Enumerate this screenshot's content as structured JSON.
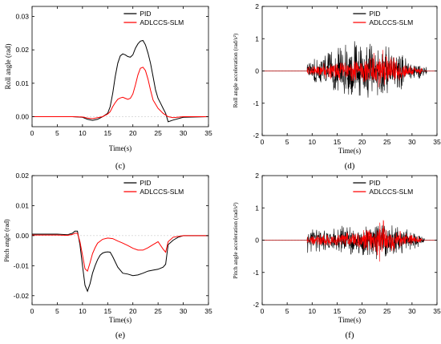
{
  "colors": {
    "pid": "#000000",
    "adlccs": "#ff0000",
    "axis": "#000000",
    "zero": "#bbbbbb"
  },
  "chart_data": [
    {
      "id": "c",
      "type": "line",
      "caption": "(c)",
      "xlabel": "Time(s)",
      "ylabel": "Roll angle  (rad)",
      "xlim": [
        0,
        35
      ],
      "ylim": [
        -0.003,
        0.033
      ],
      "xticks": [
        "0",
        "5",
        "10",
        "15",
        "20",
        "25",
        "30",
        "35"
      ],
      "yticks": [
        "0.00",
        "0.01",
        "0.02",
        "0.03"
      ],
      "legend_position": "top-right",
      "series": [
        {
          "name": "PID",
          "color": "#000000",
          "x": [
            0,
            5,
            8,
            10,
            11,
            12,
            13,
            14,
            15,
            15.5,
            16,
            16.5,
            17,
            17.5,
            18,
            18.5,
            19,
            19.5,
            20,
            20.5,
            21,
            21.5,
            22,
            22.5,
            23,
            23.5,
            24,
            24.5,
            25,
            25.5,
            26,
            26.5,
            27,
            28,
            30,
            35
          ],
          "y": [
            0,
            0,
            0,
            -0.0002,
            -0.0008,
            -0.0011,
            -0.0008,
            0,
            0.001,
            0.003,
            0.007,
            0.012,
            0.016,
            0.0182,
            0.0188,
            0.0185,
            0.018,
            0.0178,
            0.0185,
            0.0205,
            0.0218,
            0.0226,
            0.0228,
            0.0215,
            0.019,
            0.016,
            0.012,
            0.008,
            0.0055,
            0.004,
            0.0025,
            0.001,
            -0.0015,
            -0.001,
            -0.0002,
            0
          ]
        },
        {
          "name": "ADLCCS-SLM",
          "color": "#ff0000",
          "x": [
            0,
            5,
            8,
            10,
            11,
            12,
            13,
            14,
            15,
            15.5,
            16,
            16.5,
            17,
            17.5,
            18,
            18.5,
            19,
            19.5,
            20,
            20.5,
            21,
            21.5,
            22,
            22.5,
            23,
            23.5,
            24,
            25,
            26,
            27,
            28,
            30,
            35
          ],
          "y": [
            0,
            0,
            0,
            -0.0001,
            -0.0004,
            -0.0006,
            -0.0003,
            0,
            0.0008,
            0.0015,
            0.003,
            0.0042,
            0.0052,
            0.0056,
            0.0058,
            0.0055,
            0.0052,
            0.0055,
            0.0068,
            0.0095,
            0.0125,
            0.0145,
            0.0148,
            0.0138,
            0.0112,
            0.008,
            0.005,
            0.0025,
            0.001,
            0,
            -0.0003,
            0,
            0
          ]
        }
      ]
    },
    {
      "id": "d",
      "type": "line",
      "caption": "(d)",
      "xlabel": "Time(s)",
      "ylabel": "Roll angle acceleration  (rad/s²)",
      "xlim": [
        0,
        35
      ],
      "ylim": [
        -2,
        2
      ],
      "xticks": [
        "0",
        "5",
        "10",
        "15",
        "20",
        "25",
        "30",
        "35"
      ],
      "yticks": [
        "-2",
        "-1",
        "0",
        "1",
        "2"
      ],
      "legend_position": "top-right",
      "series": [
        {
          "name": "PID",
          "color": "#000000",
          "active_from": 9,
          "active_to": 33,
          "envelope": {
            "x": [
              9,
              12,
              15,
              18,
              20,
              22,
              24,
              26,
              28,
              30,
              33
            ],
            "amp": [
              0.35,
              0.6,
              0.75,
              1.2,
              0.9,
              1.0,
              0.9,
              0.75,
              0.6,
              0.35,
              0.15
            ]
          }
        },
        {
          "name": "ADLCCS-SLM",
          "color": "#ff0000",
          "active_from": 9,
          "active_to": 32,
          "envelope": {
            "x": [
              9,
              12,
              15,
              18,
              20,
              22,
              23.5,
              25,
              28,
              30,
              32
            ],
            "amp": [
              0.15,
              0.25,
              0.3,
              0.35,
              0.4,
              0.6,
              0.75,
              0.55,
              0.3,
              0.2,
              0.1
            ]
          }
        }
      ]
    },
    {
      "id": "e",
      "type": "line",
      "caption": "(e)",
      "xlabel": "Time(s)",
      "ylabel": "Pitch angle  (rad)",
      "xlim": [
        0,
        35
      ],
      "ylim": [
        -0.023,
        0.02
      ],
      "xticks": [
        "0",
        "5",
        "10",
        "15",
        "20",
        "25",
        "30",
        "35"
      ],
      "yticks": [
        "-0.02",
        "-0.01",
        "0.00",
        "0.01",
        "0.02"
      ],
      "legend_position": "top-right",
      "series": [
        {
          "name": "PID",
          "color": "#000000",
          "x": [
            0,
            5,
            7,
            8,
            8.5,
            9,
            9.5,
            10,
            10.5,
            11,
            11.5,
            12,
            12.5,
            13,
            13.5,
            14,
            14.5,
            15,
            15.5,
            16,
            17,
            18,
            19,
            20,
            21,
            22,
            23,
            24,
            25,
            26,
            26.5,
            27,
            28,
            29,
            30,
            35
          ],
          "y": [
            0.0005,
            0.0005,
            0.0003,
            0.0008,
            0.0015,
            0.0015,
            -0.003,
            -0.01,
            -0.0165,
            -0.0185,
            -0.016,
            -0.0125,
            -0.01,
            -0.008,
            -0.0065,
            -0.0058,
            -0.0055,
            -0.0054,
            -0.0055,
            -0.007,
            -0.0105,
            -0.0125,
            -0.0128,
            -0.0133,
            -0.0131,
            -0.0125,
            -0.0118,
            -0.0115,
            -0.0112,
            -0.0105,
            -0.0095,
            -0.003,
            -0.0015,
            -0.0005,
            0,
            0
          ]
        },
        {
          "name": "ADLCCS-SLM",
          "color": "#ff0000",
          "x": [
            0,
            5,
            7,
            8,
            8.5,
            9,
            9.5,
            10,
            10.5,
            11,
            11.5,
            12,
            12.5,
            13,
            14,
            15,
            16,
            17,
            18,
            19,
            20,
            21,
            22,
            23,
            24,
            25,
            26,
            26.5,
            27,
            28,
            30,
            35
          ],
          "y": [
            0.0002,
            0.0002,
            0.0001,
            0.0004,
            0.0008,
            0.0008,
            -0.002,
            -0.0065,
            -0.011,
            -0.0118,
            -0.009,
            -0.006,
            -0.004,
            -0.0025,
            -0.0012,
            -0.0008,
            -0.001,
            -0.0018,
            -0.0025,
            -0.0033,
            -0.0042,
            -0.0048,
            -0.0048,
            -0.004,
            -0.003,
            -0.002,
            -0.0045,
            -0.0055,
            -0.002,
            -0.0005,
            0,
            0
          ]
        }
      ]
    },
    {
      "id": "f",
      "type": "line",
      "caption": "(f)",
      "xlabel": "Time(s)",
      "ylabel": "Pitch angle acceleration  (rad/s²)",
      "xlim": [
        0,
        35
      ],
      "ylim": [
        -2,
        2
      ],
      "xticks": [
        "0",
        "5",
        "10",
        "15",
        "20",
        "25",
        "30",
        "35"
      ],
      "yticks": [
        "-2",
        "-1",
        "0",
        "1",
        "2"
      ],
      "legend_position": "top-right",
      "series": [
        {
          "name": "PID",
          "color": "#000000",
          "active_from": 9,
          "active_to": 32.5,
          "envelope": {
            "x": [
              9,
              9.3,
              10,
              12,
              15,
              18,
              20,
              22,
              24,
              26,
              28,
              30,
              32.5
            ],
            "amp": [
              0.9,
              0.5,
              0.4,
              0.35,
              0.45,
              0.6,
              0.55,
              0.6,
              0.65,
              0.55,
              0.45,
              0.35,
              0.15
            ]
          }
        },
        {
          "name": "ADLCCS-SLM",
          "color": "#ff0000",
          "active_from": 9,
          "active_to": 32,
          "envelope": {
            "x": [
              9,
              12,
              15,
              18,
              20,
              22,
              23.5,
              25,
              28,
              30,
              32
            ],
            "amp": [
              0.15,
              0.2,
              0.25,
              0.3,
              0.35,
              0.55,
              0.85,
              0.5,
              0.3,
              0.2,
              0.1
            ]
          }
        }
      ]
    }
  ]
}
